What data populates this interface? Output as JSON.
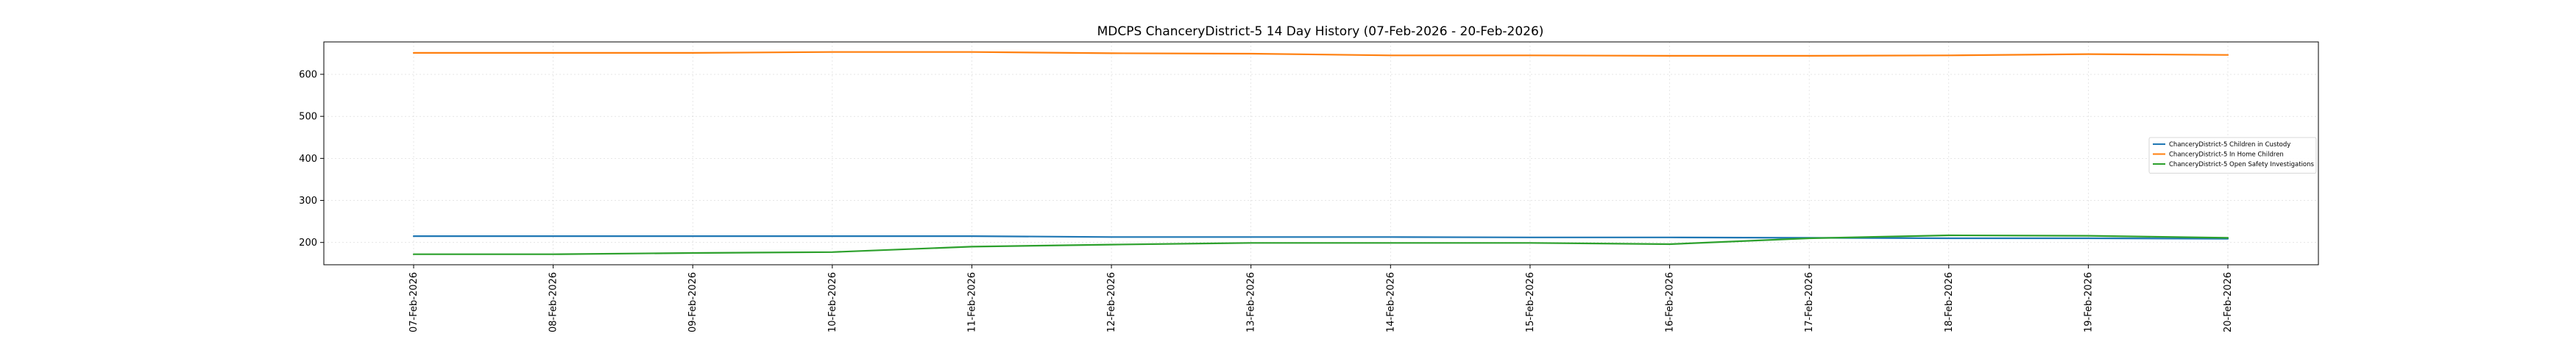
{
  "chart_data": {
    "type": "line",
    "title": "MDCPS ChanceryDistrict-5 14 Day History (07-Feb-2026 - 20-Feb-2026)",
    "xlabel": "",
    "ylabel": "",
    "categories": [
      "07-Feb-2026",
      "08-Feb-2026",
      "09-Feb-2026",
      "10-Feb-2026",
      "11-Feb-2026",
      "12-Feb-2026",
      "13-Feb-2026",
      "14-Feb-2026",
      "15-Feb-2026",
      "16-Feb-2026",
      "17-Feb-2026",
      "18-Feb-2026",
      "19-Feb-2026",
      "20-Feb-2026"
    ],
    "ylim": [
      147,
      677
    ],
    "yticks": [
      200,
      300,
      400,
      500,
      600
    ],
    "grid": true,
    "legend_position": "right",
    "series": [
      {
        "name": "ChanceryDistrict-5 Children in Custody",
        "color": "#1f77b4",
        "values": [
          215,
          215,
          215,
          215,
          215,
          213,
          213,
          213,
          212,
          212,
          211,
          210,
          210,
          209
        ]
      },
      {
        "name": "ChanceryDistrict-5 In Home Children",
        "color": "#ff7f0e",
        "values": [
          651,
          651,
          651,
          653,
          653,
          650,
          649,
          645,
          645,
          644,
          644,
          645,
          648,
          646
        ]
      },
      {
        "name": "ChanceryDistrict-5 Open Safety Investigations",
        "color": "#2ca02c",
        "values": [
          172,
          172,
          175,
          177,
          190,
          195,
          199,
          199,
          199,
          196,
          210,
          217,
          216,
          211
        ]
      }
    ]
  }
}
